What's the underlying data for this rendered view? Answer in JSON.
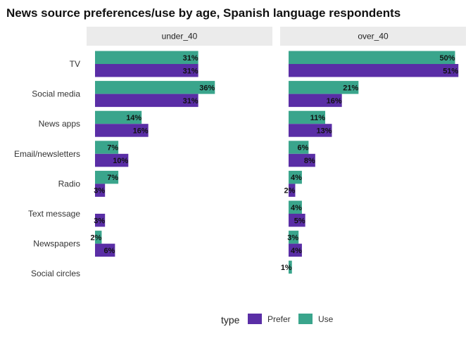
{
  "chart_data": {
    "type": "bar",
    "orientation": "horizontal",
    "title": "News source preferences/use by age, Spanish language respondents",
    "categories": [
      "TV",
      "Social media",
      "News apps",
      "Email/newsletters",
      "Radio",
      "Text message",
      "Newspapers",
      "Social circles"
    ],
    "xlim": [
      0,
      51
    ],
    "legend": {
      "title": "type",
      "position": "bottom",
      "entries": [
        {
          "name": "Prefer",
          "color": "#5a2ea6"
        },
        {
          "name": "Use",
          "color": "#3aa58c"
        }
      ]
    },
    "panels": [
      {
        "name": "under_40",
        "series": [
          {
            "name": "Use",
            "color": "#3aa58c",
            "values": [
              31,
              36,
              14,
              7,
              7,
              null,
              2,
              null
            ],
            "labels": [
              "31%",
              "36%",
              "14%",
              "7%",
              "7%",
              null,
              "2%",
              null
            ]
          },
          {
            "name": "Prefer",
            "color": "#5a2ea6",
            "values": [
              31,
              31,
              16,
              10,
              3,
              3,
              6,
              null
            ],
            "labels": [
              "31%",
              "31%",
              "16%",
              "10%",
              "3%",
              "3%",
              "6%",
              null
            ]
          }
        ]
      },
      {
        "name": "over_40",
        "series": [
          {
            "name": "Use",
            "color": "#3aa58c",
            "values": [
              50,
              21,
              11,
              6,
              4,
              4,
              3,
              1
            ],
            "labels": [
              "50%",
              "21%",
              "11%",
              "6%",
              "4%",
              "4%",
              "3%",
              "1%"
            ]
          },
          {
            "name": "Prefer",
            "color": "#5a2ea6",
            "values": [
              51,
              16,
              13,
              8,
              2,
              5,
              4,
              null
            ],
            "labels": [
              "51%",
              "16%",
              "13%",
              "8%",
              "2%",
              "5%",
              "4%",
              null
            ]
          }
        ]
      }
    ]
  }
}
